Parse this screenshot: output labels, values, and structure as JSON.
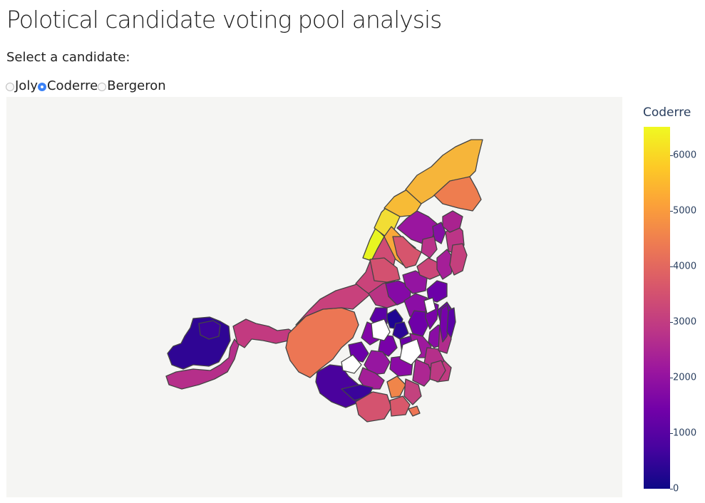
{
  "page": {
    "title": "Polotical candidate voting pool analysis",
    "select_label": "Select a candidate:"
  },
  "candidates": [
    {
      "label": "Joly",
      "checked": false
    },
    {
      "label": "Coderre",
      "checked": true
    },
    {
      "label": "Bergeron",
      "checked": false
    }
  ],
  "colorbar": {
    "title": "Coderre",
    "colorscale": [
      "#0d0887",
      "#46039f",
      "#7201a8",
      "#9c179e",
      "#bd3786",
      "#d8576b",
      "#ed7953",
      "#fb9f3a",
      "#fdca26",
      "#f0f921"
    ],
    "min": 0,
    "max": 6500,
    "ticks": [
      "0",
      "1000",
      "2000",
      "3000",
      "4000",
      "5000",
      "6000"
    ]
  },
  "map": {
    "background": "#f5f5f3",
    "border_color": "#444444"
  }
}
